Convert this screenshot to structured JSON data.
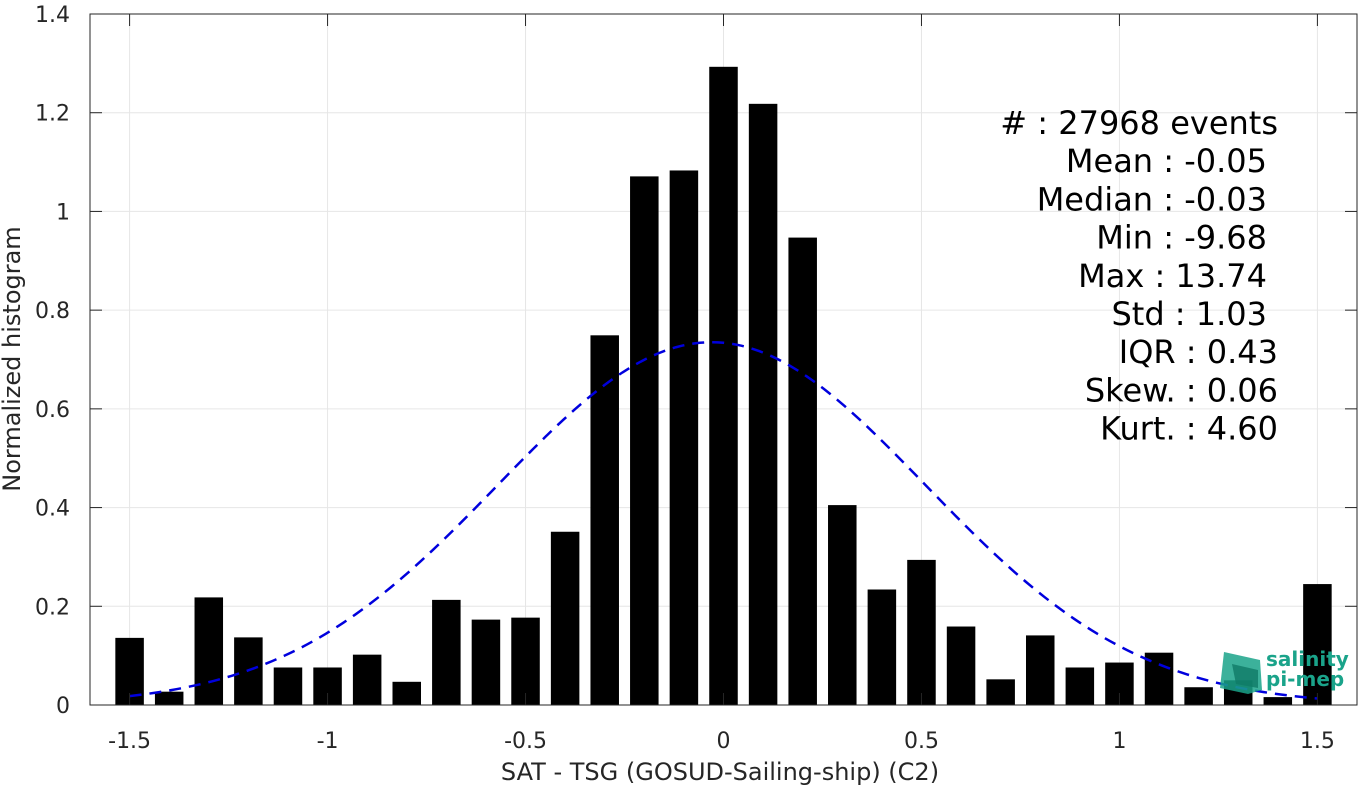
{
  "chart_data": {
    "type": "bar",
    "xlabel": "SAT - TSG (GOSUD-Sailing-ship) (C2)",
    "ylabel": "Normalized histogram",
    "xlim": [
      -1.6,
      1.6
    ],
    "ylim": [
      0,
      1.4
    ],
    "x_ticks": [
      "-1.5",
      "-1",
      "-0.5",
      "0",
      "0.5",
      "1",
      "1.5"
    ],
    "y_ticks": [
      "0",
      "0.2",
      "0.4",
      "0.6",
      "0.8",
      "1",
      "1.2",
      "1.4"
    ],
    "grid": true,
    "bar_color": "#000000",
    "bin_width": 0.1,
    "x": [
      -1.5,
      -1.4,
      -1.3,
      -1.2,
      -1.1,
      -1.0,
      -0.9,
      -0.8,
      -0.7,
      -0.6,
      -0.5,
      -0.4,
      -0.3,
      -0.2,
      -0.1,
      0.0,
      0.1,
      0.2,
      0.3,
      0.4,
      0.5,
      0.6,
      0.7,
      0.8,
      0.9,
      1.0,
      1.1,
      1.2,
      1.3,
      1.4,
      1.5
    ],
    "values": [
      0.136,
      0.027,
      0.218,
      0.137,
      0.076,
      0.076,
      0.102,
      0.047,
      0.213,
      0.173,
      0.177,
      0.351,
      0.749,
      1.071,
      1.083,
      1.293,
      1.218,
      0.947,
      0.405,
      0.234,
      0.294,
      0.159,
      0.052,
      0.141,
      0.076,
      0.086,
      0.106,
      0.036,
      0.05,
      0.016,
      0.245
    ],
    "fit": {
      "type": "gaussian",
      "color": "#0000dd",
      "style": "dashed",
      "mean": -0.03,
      "peak": 0.735,
      "sigma": 0.54
    },
    "stats": [
      {
        "label": "#  : 27968 events"
      },
      {
        "label": "Mean : -0.05"
      },
      {
        "label": "Median : -0.03"
      },
      {
        "label": "Min : -9.68"
      },
      {
        "label": "Max : 13.74"
      },
      {
        "label": "Std : 1.03"
      },
      {
        "label": "IQR : 0.43"
      },
      {
        "label": "Skew. : 0.06"
      },
      {
        "label": "Kurt. : 4.60"
      }
    ]
  },
  "logo": {
    "line1": "salinity",
    "line2": "pi-mep",
    "color": "#1aa38a"
  }
}
